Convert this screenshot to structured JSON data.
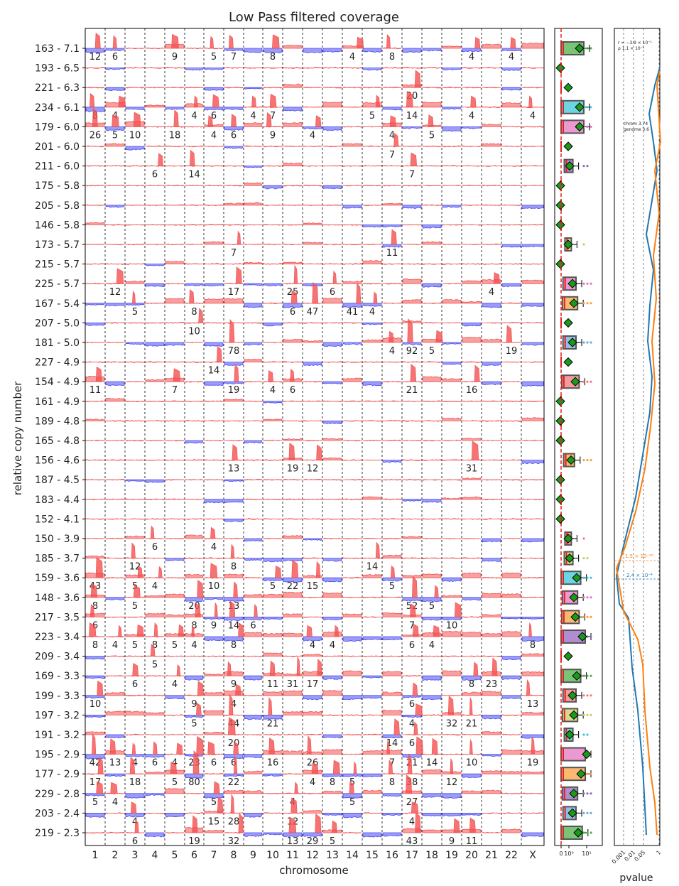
{
  "title": "Low Pass filtered coverage",
  "xlabel": "chromosome",
  "ylabel": "relative copy number",
  "pvalue_label": "pvalue",
  "chart_data": {
    "type": "line",
    "title": "Low Pass filtered coverage",
    "xlabel": "chromosome",
    "ylabel": "relative copy number",
    "chromosomes": [
      "1",
      "2",
      "3",
      "4",
      "5",
      "6",
      "7",
      "8",
      "9",
      "10",
      "11",
      "12",
      "13",
      "14",
      "15",
      "16",
      "17",
      "18",
      "19",
      "20",
      "21",
      "22",
      "X"
    ],
    "colors": {
      "gain": "#f25050",
      "loss": "#4a4af0",
      "median": "#e02020",
      "marker": "#1a9a1a"
    },
    "samples": [
      {
        "label": "163 - 7.1",
        "amps": [
          [
            "1",
            "12"
          ],
          [
            "2",
            "6"
          ],
          [
            "5",
            "9"
          ],
          [
            "7",
            "5"
          ],
          [
            "8",
            "7"
          ],
          [
            "10",
            "8"
          ],
          [
            "14",
            "4"
          ],
          [
            "16",
            "8"
          ],
          [
            "20",
            "4"
          ],
          [
            "22",
            "4"
          ]
        ]
      },
      {
        "label": "193 - 6.5",
        "amps": []
      },
      {
        "label": "221 - 6.3",
        "amps": [
          [
            "17",
            "20"
          ]
        ]
      },
      {
        "label": "234 - 6.1",
        "amps": [
          [
            "1",
            "8"
          ],
          [
            "2",
            "4"
          ],
          [
            "6",
            "4"
          ],
          [
            "7",
            "6"
          ],
          [
            "9",
            "4"
          ],
          [
            "10",
            "7"
          ],
          [
            "15",
            "5"
          ],
          [
            "17",
            "14"
          ],
          [
            "20",
            "4"
          ],
          [
            "X",
            "4"
          ]
        ]
      },
      {
        "label": "179 - 6.0",
        "amps": [
          [
            "1",
            "26"
          ],
          [
            "2",
            "5"
          ],
          [
            "3",
            "10"
          ],
          [
            "5",
            "18"
          ],
          [
            "7",
            "4"
          ],
          [
            "8",
            "6"
          ],
          [
            "10",
            "9"
          ],
          [
            "12",
            "4"
          ],
          [
            "16",
            "4"
          ],
          [
            "18",
            "5"
          ]
        ]
      },
      {
        "label": "201 - 6.0",
        "amps": [
          [
            "16",
            "7"
          ]
        ]
      },
      {
        "label": "211 - 6.0",
        "amps": [
          [
            "4",
            "6"
          ],
          [
            "6",
            "14"
          ],
          [
            "17",
            "7"
          ]
        ]
      },
      {
        "label": "175 - 5.8",
        "amps": []
      },
      {
        "label": "205 - 5.8",
        "amps": []
      },
      {
        "label": "146 - 5.8",
        "amps": []
      },
      {
        "label": "173 - 5.7",
        "amps": [
          [
            "8",
            "7"
          ],
          [
            "16",
            "11"
          ]
        ]
      },
      {
        "label": "215 - 5.7",
        "amps": []
      },
      {
        "label": "225 - 5.7",
        "amps": [
          [
            "2",
            "12"
          ],
          [
            "8",
            "17"
          ],
          [
            "11",
            "25"
          ],
          [
            "13",
            "6"
          ],
          [
            "21",
            "4"
          ]
        ]
      },
      {
        "label": "167 - 5.4",
        "amps": [
          [
            "3",
            "5"
          ],
          [
            "6",
            "8"
          ],
          [
            "11",
            "6"
          ],
          [
            "12",
            "47"
          ],
          [
            "14",
            "41"
          ],
          [
            "15",
            "4"
          ]
        ]
      },
      {
        "label": "207 - 5.0",
        "amps": [
          [
            "6",
            "10"
          ]
        ]
      },
      {
        "label": "181 - 5.0",
        "amps": [
          [
            "8",
            "78"
          ],
          [
            "16",
            "4"
          ],
          [
            "17",
            "92"
          ],
          [
            "18",
            "5"
          ],
          [
            "22",
            "19"
          ]
        ]
      },
      {
        "label": "227 - 4.9",
        "amps": [
          [
            "7",
            "14"
          ]
        ]
      },
      {
        "label": "154 - 4.9",
        "amps": [
          [
            "1",
            "11"
          ],
          [
            "5",
            "7"
          ],
          [
            "8",
            "19"
          ],
          [
            "10",
            "4"
          ],
          [
            "11",
            "6"
          ],
          [
            "17",
            "21"
          ],
          [
            "20",
            "16"
          ]
        ]
      },
      {
        "label": "161 - 4.9",
        "amps": []
      },
      {
        "label": "189 - 4.8",
        "amps": []
      },
      {
        "label": "165 - 4.8",
        "amps": []
      },
      {
        "label": "156 - 4.6",
        "amps": [
          [
            "8",
            "13"
          ],
          [
            "11",
            "19"
          ],
          [
            "12",
            "12"
          ],
          [
            "20",
            "31"
          ]
        ]
      },
      {
        "label": "187 - 4.5",
        "amps": []
      },
      {
        "label": "183 - 4.4",
        "amps": []
      },
      {
        "label": "152 - 4.1",
        "amps": []
      },
      {
        "label": "150 - 3.9",
        "amps": [
          [
            "4",
            "6"
          ],
          [
            "7",
            "4"
          ]
        ]
      },
      {
        "label": "185 - 3.7",
        "amps": [
          [
            "3",
            "12"
          ],
          [
            "8",
            "8"
          ],
          [
            "15",
            "14"
          ]
        ]
      },
      {
        "label": "159 - 3.6",
        "amps": [
          [
            "1",
            "43"
          ],
          [
            "3",
            "5"
          ],
          [
            "4",
            "4"
          ],
          [
            "7",
            "10"
          ],
          [
            "10",
            "5"
          ],
          [
            "11",
            "22"
          ],
          [
            "12",
            "15"
          ],
          [
            "16",
            "5"
          ]
        ]
      },
      {
        "label": "148 - 3.6",
        "amps": [
          [
            "1",
            "8"
          ],
          [
            "3",
            "5"
          ],
          [
            "6",
            "20"
          ],
          [
            "8",
            "13"
          ],
          [
            "17",
            "52"
          ],
          [
            "18",
            "5"
          ]
        ]
      },
      {
        "label": "217 - 3.5",
        "amps": [
          [
            "1",
            "6"
          ],
          [
            "6",
            "8"
          ],
          [
            "7",
            "9"
          ],
          [
            "8",
            "14"
          ],
          [
            "9",
            "6"
          ],
          [
            "17",
            "7"
          ],
          [
            "19",
            "10"
          ]
        ]
      },
      {
        "label": "223 - 3.4",
        "amps": [
          [
            "1",
            "8"
          ],
          [
            "2",
            "4"
          ],
          [
            "3",
            "5"
          ],
          [
            "4",
            "8"
          ],
          [
            "5",
            "5"
          ],
          [
            "6",
            "4"
          ],
          [
            "8",
            "8"
          ],
          [
            "12",
            "4"
          ],
          [
            "13",
            "4"
          ],
          [
            "17",
            "6"
          ],
          [
            "18",
            "4"
          ],
          [
            "X",
            "8"
          ]
        ]
      },
      {
        "label": "209 - 3.4",
        "amps": [
          [
            "4",
            "5"
          ]
        ]
      },
      {
        "label": "169 - 3.3",
        "amps": [
          [
            "3",
            "6"
          ],
          [
            "5",
            "4"
          ],
          [
            "8",
            "9"
          ],
          [
            "10",
            "11"
          ],
          [
            "11",
            "31"
          ],
          [
            "12",
            "17"
          ],
          [
            "20",
            "8"
          ],
          [
            "21",
            "23"
          ]
        ]
      },
      {
        "label": "199 - 3.3",
        "amps": [
          [
            "1",
            "10"
          ],
          [
            "6",
            "9"
          ],
          [
            "8",
            "4"
          ],
          [
            "17",
            "6"
          ],
          [
            "X",
            "13"
          ]
        ]
      },
      {
        "label": "197 - 3.2",
        "amps": [
          [
            "6",
            "5"
          ],
          [
            "8",
            "44"
          ],
          [
            "10",
            "21"
          ],
          [
            "17",
            "4"
          ],
          [
            "19",
            "32"
          ],
          [
            "20",
            "21"
          ]
        ]
      },
      {
        "label": "191 - 3.2",
        "amps": [
          [
            "8",
            "20"
          ],
          [
            "16",
            "14"
          ],
          [
            "17",
            "6"
          ]
        ]
      },
      {
        "label": "195 - 2.9",
        "amps": [
          [
            "1",
            "42"
          ],
          [
            "2",
            "13"
          ],
          [
            "3",
            "4"
          ],
          [
            "4",
            "6"
          ],
          [
            "5",
            "4"
          ],
          [
            "6",
            "23"
          ],
          [
            "7",
            "6"
          ],
          [
            "8",
            "6"
          ],
          [
            "10",
            "16"
          ],
          [
            "12",
            "26"
          ],
          [
            "16",
            "7"
          ],
          [
            "17",
            "21"
          ],
          [
            "18",
            "14"
          ],
          [
            "20",
            "10"
          ],
          [
            "X",
            "19"
          ]
        ]
      },
      {
        "label": "177 - 2.9",
        "amps": [
          [
            "1",
            "17"
          ],
          [
            "3",
            "18"
          ],
          [
            "5",
            "5"
          ],
          [
            "6",
            "80"
          ],
          [
            "8",
            "22"
          ],
          [
            "12",
            "4"
          ],
          [
            "13",
            "8"
          ],
          [
            "14",
            "5"
          ],
          [
            "16",
            "8"
          ],
          [
            "17",
            "38"
          ],
          [
            "19",
            "12"
          ]
        ]
      },
      {
        "label": "229 - 2.8",
        "amps": [
          [
            "1",
            "5"
          ],
          [
            "2",
            "4"
          ],
          [
            "7",
            "5"
          ],
          [
            "11",
            "4"
          ],
          [
            "14",
            "5"
          ],
          [
            "17",
            "27"
          ]
        ]
      },
      {
        "label": "203 - 2.4",
        "amps": [
          [
            "3",
            "4"
          ],
          [
            "7",
            "15"
          ],
          [
            "8",
            "28"
          ],
          [
            "11",
            "12"
          ],
          [
            "17",
            "4"
          ]
        ]
      },
      {
        "label": "219 - 2.3",
        "amps": [
          [
            "3",
            "6"
          ],
          [
            "6",
            "19"
          ],
          [
            "8",
            "32"
          ],
          [
            "11",
            "13"
          ],
          [
            "12",
            "29"
          ],
          [
            "13",
            "5"
          ],
          [
            "17",
            "43"
          ],
          [
            "19",
            "9"
          ],
          [
            "20",
            "11"
          ]
        ]
      }
    ],
    "boxplot_axis": {
      "ticks": [
        "0",
        "10⁰",
        "10¹"
      ]
    },
    "pvalue_axis": {
      "ticks": [
        "0.001",
        "0.01",
        "0.05",
        "1"
      ]
    },
    "pvalue_annotations": [
      "r = −3.9 × 10⁻¹",
      "ρ 1.1 × 10⁻²",
      "chrom 3.74",
      "genome 3.6",
      "1.5 × 10⁻²⁸",
      "2.4 × 10⁻⁴"
    ]
  }
}
